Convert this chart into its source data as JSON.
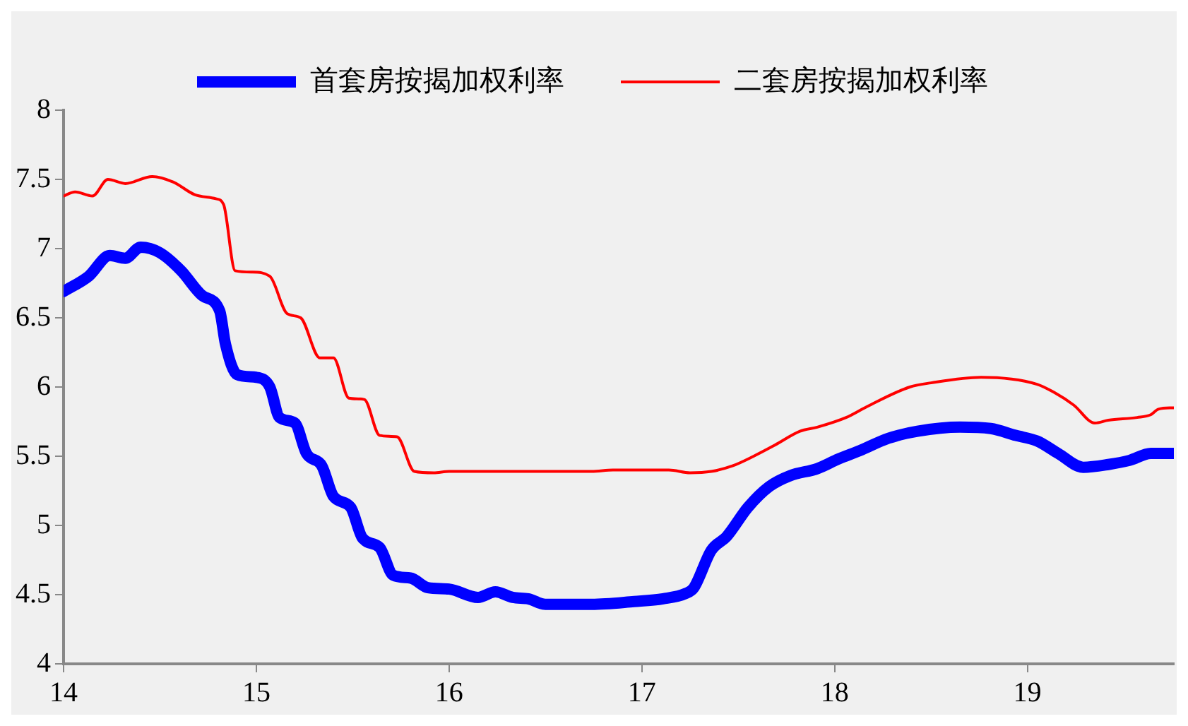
{
  "chart_data": {
    "type": "line",
    "xlim": [
      14,
      19.76
    ],
    "xticks": [
      14,
      15,
      16,
      17,
      18,
      19
    ],
    "ylim": [
      4,
      8
    ],
    "yticks": [
      4,
      4.5,
      5,
      5.5,
      6,
      6.5,
      7,
      7.5,
      8
    ],
    "grid": false,
    "legend": "top",
    "marker": "none",
    "line_style": "solid",
    "series": [
      {
        "name": "首套房按揭加权利率",
        "color": "#0000ff",
        "x": [
          14.0,
          14.13,
          14.24,
          14.32,
          14.4,
          14.5,
          14.61,
          14.72,
          14.81,
          14.84,
          14.9,
          15.0,
          15.07,
          15.12,
          15.2,
          15.26,
          15.34,
          15.4,
          15.49,
          15.55,
          15.64,
          15.71,
          15.8,
          15.89,
          16.0,
          16.15,
          16.24,
          16.33,
          16.41,
          16.5,
          16.74,
          16.96,
          17.11,
          17.23,
          17.27,
          17.36,
          17.44,
          17.55,
          17.66,
          17.77,
          17.91,
          18.02,
          18.13,
          18.28,
          18.43,
          18.65,
          18.81,
          18.94,
          19.05,
          19.16,
          19.29,
          19.42,
          19.53,
          19.64,
          19.76
        ],
        "values": [
          6.69,
          6.8,
          6.95,
          6.93,
          7.01,
          6.97,
          6.84,
          6.66,
          6.55,
          6.31,
          6.09,
          6.07,
          6.0,
          5.78,
          5.74,
          5.52,
          5.43,
          5.21,
          5.13,
          4.91,
          4.84,
          4.64,
          4.62,
          4.55,
          4.54,
          4.48,
          4.52,
          4.48,
          4.47,
          4.43,
          4.43,
          4.45,
          4.47,
          4.51,
          4.55,
          4.82,
          4.92,
          5.13,
          5.28,
          5.36,
          5.41,
          5.48,
          5.54,
          5.63,
          5.68,
          5.71,
          5.7,
          5.65,
          5.61,
          5.52,
          5.42,
          5.44,
          5.47,
          5.52,
          5.52
        ]
      },
      {
        "name": "二套房按揭加权利率",
        "color": "#ff0000",
        "x": [
          14.0,
          14.06,
          14.15,
          14.23,
          14.32,
          14.46,
          14.57,
          14.68,
          14.79,
          14.83,
          14.89,
          14.98,
          15.07,
          15.16,
          15.23,
          15.33,
          15.4,
          15.48,
          15.56,
          15.64,
          15.73,
          15.82,
          15.92,
          16.0,
          16.74,
          16.85,
          17.14,
          17.25,
          17.36,
          17.47,
          17.58,
          17.69,
          17.82,
          17.91,
          18.06,
          18.17,
          18.39,
          18.5,
          18.76,
          19.05,
          19.14,
          19.24,
          19.35,
          19.42,
          19.57,
          19.64,
          19.68,
          19.76
        ],
        "values": [
          7.38,
          7.41,
          7.38,
          7.5,
          7.47,
          7.52,
          7.48,
          7.39,
          7.36,
          7.32,
          6.84,
          6.83,
          6.8,
          6.53,
          6.5,
          6.21,
          6.21,
          5.92,
          5.91,
          5.65,
          5.64,
          5.39,
          5.38,
          5.39,
          5.39,
          5.4,
          5.4,
          5.38,
          5.39,
          5.43,
          5.5,
          5.58,
          5.68,
          5.71,
          5.78,
          5.86,
          6.0,
          6.03,
          6.07,
          6.02,
          5.96,
          5.87,
          5.74,
          5.76,
          5.78,
          5.8,
          5.84,
          5.85
        ]
      }
    ]
  }
}
